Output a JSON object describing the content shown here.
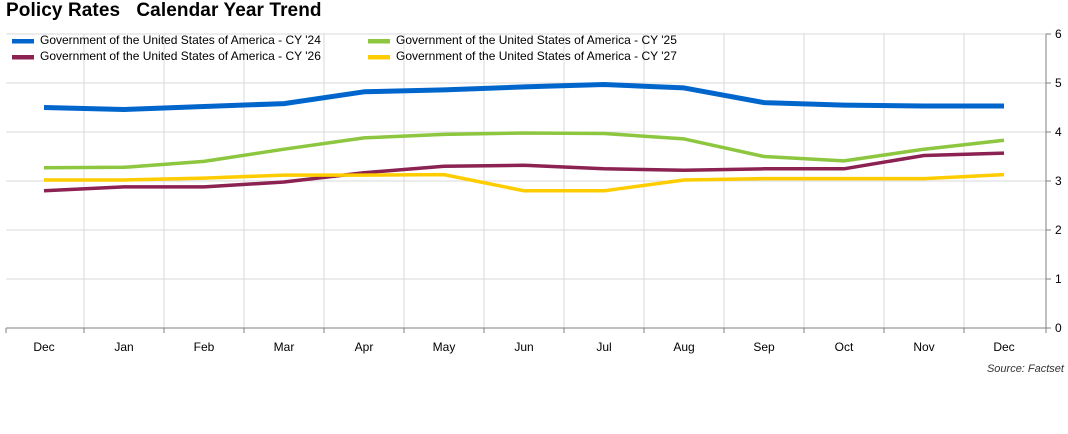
{
  "chart_data": {
    "type": "line",
    "title": "Policy Rates   Calendar Year Trend",
    "categories": [
      "Dec",
      "Jan",
      "Feb",
      "Mar",
      "Apr",
      "May",
      "Jun",
      "Jul",
      "Aug",
      "Sep",
      "Oct",
      "Nov",
      "Dec"
    ],
    "series": [
      {
        "name": "Government of the United States of America - CY '24",
        "color": "#0066cc",
        "values": [
          4.5,
          4.46,
          4.52,
          4.58,
          4.82,
          4.86,
          4.92,
          4.97,
          4.9,
          4.6,
          4.55,
          4.53,
          4.53
        ]
      },
      {
        "name": "Government of the United States of America - CY '25",
        "color": "#8dc63f",
        "values": [
          3.27,
          3.28,
          3.4,
          3.65,
          3.88,
          3.95,
          3.98,
          3.97,
          3.86,
          3.5,
          3.41,
          3.65,
          3.83
        ]
      },
      {
        "name": "Government of the United States of America - CY '26",
        "color": "#8b2252",
        "values": [
          2.8,
          2.88,
          2.88,
          2.98,
          3.17,
          3.3,
          3.32,
          3.25,
          3.22,
          3.25,
          3.25,
          3.52,
          3.57
        ]
      },
      {
        "name": "Government of the United States of America - CY '27",
        "color": "#ffcc00",
        "values": [
          3.02,
          3.02,
          3.06,
          3.12,
          3.12,
          3.13,
          2.8,
          2.8,
          3.02,
          3.05,
          3.05,
          3.05,
          3.13
        ]
      }
    ],
    "y_ticks": [
      "0",
      "1",
      "2",
      "3",
      "4",
      "5",
      "6"
    ],
    "ylim": [
      0,
      6
    ],
    "grid": true,
    "legend_position": "top-left",
    "y_axis_side": "right"
  },
  "source_label": "Source: Factset"
}
